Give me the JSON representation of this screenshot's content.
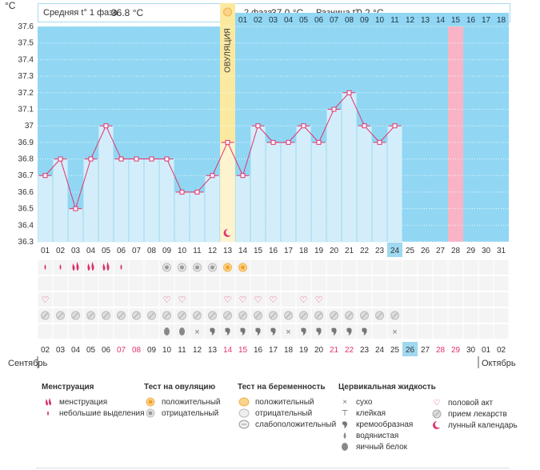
{
  "header": {
    "phase1_label": "Средняя t° 1 фаза",
    "phase1_value": "36.8 °C",
    "phase2_label": "2 фаза",
    "phase2_value": "37.0 °C",
    "diff_label": "Разница t°",
    "diff_value": "0.2 °C",
    "y_unit": "°C"
  },
  "chart_data": {
    "type": "line",
    "x": [
      "01",
      "02",
      "03",
      "04",
      "05",
      "06",
      "07",
      "08",
      "09",
      "10",
      "11",
      "12",
      "13",
      "14",
      "15",
      "16",
      "17",
      "18",
      "19",
      "20",
      "21",
      "22",
      "23",
      "24"
    ],
    "y": [
      36.7,
      36.8,
      36.5,
      36.8,
      37.0,
      36.8,
      36.8,
      36.8,
      36.8,
      36.6,
      36.6,
      36.7,
      36.9,
      36.7,
      37.0,
      36.9,
      36.9,
      37.0,
      36.9,
      37.1,
      37.2,
      37.0,
      36.9,
      37.0
    ],
    "ylim": [
      36.3,
      37.6
    ],
    "yticks": [
      "37.6",
      "37.5",
      "37.4",
      "37.3",
      "37.2",
      "37.1",
      "37",
      "36.9",
      "36.8",
      "36.7",
      "36.6",
      "36.5",
      "36.4",
      "36.3"
    ],
    "cycle_days": [
      "01",
      "02",
      "03",
      "04",
      "05",
      "06",
      "07",
      "08",
      "09",
      "10",
      "11",
      "12",
      "13",
      "14",
      "15",
      "16",
      "17",
      "18",
      "19",
      "20",
      "21",
      "22",
      "23",
      "24",
      "25",
      "26",
      "27",
      "28",
      "29",
      "30",
      "31"
    ],
    "post_ovulation_days": [
      "01",
      "02",
      "03",
      "04",
      "05",
      "06",
      "07",
      "08",
      "09",
      "10",
      "11",
      "12",
      "13",
      "14",
      "15",
      "16",
      "17",
      "18"
    ],
    "ovulation_label": "ОВУЛЯЦИЯ",
    "ovulation_day": 13,
    "today_day": 24,
    "expected_period_day": 28,
    "dates": [
      "02",
      "03",
      "04",
      "05",
      "06",
      "07",
      "08",
      "09",
      "10",
      "11",
      "12",
      "13",
      "14",
      "15",
      "16",
      "17",
      "18",
      "19",
      "20",
      "21",
      "22",
      "23",
      "24",
      "25",
      "26",
      "27",
      "28",
      "29",
      "30",
      "01",
      "02"
    ],
    "weekend_dates_idx": [
      5,
      6,
      12,
      13,
      19,
      20,
      26,
      27
    ],
    "month_left": "Сентябрь",
    "month_right": "Октябрь"
  },
  "markers": {
    "menstruation": {
      "1": "small",
      "2": "small",
      "3": "heavy",
      "4": "heavy",
      "5": "heavy",
      "6": "small"
    },
    "ovulation_test": {
      "9": "neg",
      "10": "neg",
      "11": "neg",
      "12": "neg",
      "13": "pos",
      "14": "pos"
    },
    "intercourse": [
      1,
      9,
      10,
      13,
      14,
      15,
      16,
      18,
      19
    ],
    "medication": [
      1,
      2,
      3,
      4,
      5,
      6,
      7,
      8,
      9,
      10,
      11,
      12,
      13,
      14,
      15,
      16,
      17,
      18,
      19,
      20,
      21,
      22,
      23,
      24
    ],
    "fluid": {
      "9": "egg",
      "10": "egg",
      "11": "dry",
      "12": "creamy",
      "13": "creamy",
      "14": "creamy",
      "15": "creamy",
      "16": "creamy",
      "17": "dry",
      "18": "creamy",
      "19": "creamy",
      "20": "creamy",
      "21": "creamy",
      "22": "creamy",
      "24": "dry"
    }
  },
  "legend": {
    "menstruation": {
      "title": "Менструация",
      "items": [
        "менструация",
        "небольшие выделения"
      ]
    },
    "ovulation_test": {
      "title": "Тест на овуляцию",
      "items": [
        "положительный",
        "отрицательный"
      ]
    },
    "pregnancy_test": {
      "title": "Тест на беременность",
      "items": [
        "положительный",
        "отрицательный",
        "слабоположительный"
      ]
    },
    "cervical_fluid": {
      "title": "Цервикальная жидкость",
      "items": [
        "сухо",
        "клейкая",
        "кремообразная",
        "водянистая",
        "яичный белок"
      ]
    },
    "other": {
      "items": [
        "половой акт",
        "прием лекарств",
        "лунный календарь"
      ]
    }
  },
  "colors": {
    "sky": "#91d7f3",
    "bar": "#d3eefa",
    "line": "#e0336e",
    "ovulation": "#fbe9a0",
    "today": "#9fd8f0",
    "expected_period": "#f8b4c6"
  }
}
